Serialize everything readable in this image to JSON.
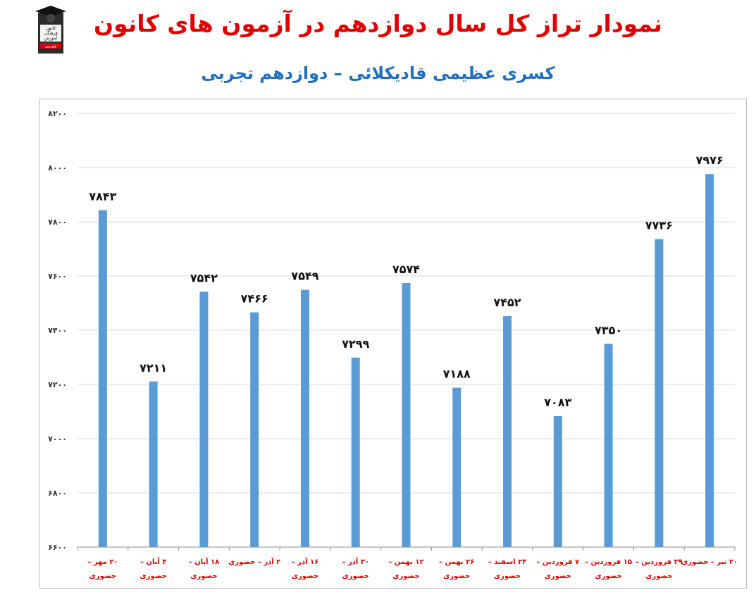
{
  "title": "نمودار تراز کل سال دوازدهم در آزمون های کانون",
  "subtitle": "کسری عظیمی قادیکلائی – دوازدهم تجربی",
  "logo": {
    "lines": [
      "کانون",
      "فرهنگی",
      "آموزش"
    ],
    "badge": "قلم‌چی"
  },
  "chart_data": {
    "type": "bar",
    "title": "نمودار تراز کل سال دوازدهم در آزمون های کانون",
    "subtitle": "کسری عظیمی قادیکلائی – دوازدهم تجربی",
    "categories": [
      [
        "۲۰ مهر –",
        "حضوری"
      ],
      [
        "۴ آبان –",
        "حضوری"
      ],
      [
        "۱۸ آبان –",
        "حضوری"
      ],
      [
        "۲ آذر – حضوری"
      ],
      [
        "۱۶ آذر –",
        "حضوری"
      ],
      [
        "۳۰ آذر –",
        "حضوری"
      ],
      [
        "۱۲ بهمن –",
        "حضوری"
      ],
      [
        "۲۶ بهمن –",
        "حضوری"
      ],
      [
        "۲۴ اسفند –",
        "حضوری"
      ],
      [
        "۷ فروردین –",
        "حضوری"
      ],
      [
        "۱۵ فروردین –",
        "حضوری"
      ],
      [
        "۲۹ فروردین –",
        "حضوری"
      ],
      [
        "۲۰ تیر – حضوری"
      ]
    ],
    "values": [
      7843,
      7211,
      7542,
      7466,
      7549,
      7299,
      7574,
      7188,
      7452,
      7083,
      7350,
      7736,
      7976
    ],
    "value_labels": [
      "۷۸۴۳",
      "۷۲۱۱",
      "۷۵۴۲",
      "۷۴۶۶",
      "۷۵۴۹",
      "۷۲۹۹",
      "۷۵۷۴",
      "۷۱۸۸",
      "۷۴۵۲",
      "۷۰۸۳",
      "۷۳۵۰",
      "۷۷۳۶",
      "۷۹۷۶"
    ],
    "ylim": [
      6600,
      8200
    ],
    "yticks": [
      6600,
      6800,
      7000,
      7200,
      7400,
      7600,
      7800,
      8000,
      8200
    ],
    "ytick_labels": [
      "۶۶۰۰",
      "۶۸۰۰",
      "۷۰۰۰",
      "۷۲۰۰",
      "۷۴۰۰",
      "۷۶۰۰",
      "۷۸۰۰",
      "۸۰۰۰",
      "۸۲۰۰"
    ],
    "grid": true,
    "legend": "none",
    "bar_color": "#5b9bd5",
    "label_color": "#e00000"
  }
}
